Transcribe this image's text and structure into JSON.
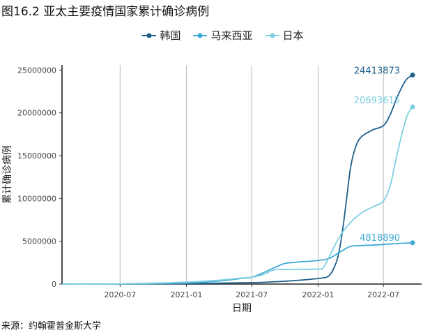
{
  "title": "图16.2 亚太主要疫情国家累计确诊病例",
  "source": "来源：约翰霍普金斯大学",
  "chart_data": {
    "type": "line",
    "title": "图16.2 亚太主要疫情国家累计确诊病例",
    "xlabel": "日期",
    "ylabel": "累计确诊病例",
    "x_ticks": [
      "2020-07",
      "2021-01",
      "2021-07",
      "2022-01",
      "2022-07"
    ],
    "y_ticks": [
      "0",
      "5000000",
      "10000000",
      "15000000",
      "20000000",
      "25000000"
    ],
    "xlim": [
      "2020-01-22",
      "2022-10-15"
    ],
    "ylim": [
      0,
      25600000
    ],
    "grid": "vertical",
    "legend_position": "top",
    "series": [
      {
        "name": "韩国",
        "color": "#1f5f8b",
        "end_label": "24413873",
        "points": [
          [
            "2020-01-22",
            0
          ],
          [
            "2020-07-01",
            13000
          ],
          [
            "2021-01-01",
            62000
          ],
          [
            "2021-07-01",
            160000
          ],
          [
            "2021-10-01",
            330000
          ],
          [
            "2022-01-01",
            650000
          ],
          [
            "2022-02-01",
            1000000
          ],
          [
            "2022-02-20",
            2500000
          ],
          [
            "2022-03-01",
            4000000
          ],
          [
            "2022-03-10",
            6300000
          ],
          [
            "2022-03-20",
            9600000
          ],
          [
            "2022-04-01",
            13600000
          ],
          [
            "2022-04-15",
            16000000
          ],
          [
            "2022-05-01",
            17200000
          ],
          [
            "2022-06-01",
            18000000
          ],
          [
            "2022-07-01",
            18500000
          ],
          [
            "2022-07-20",
            19800000
          ],
          [
            "2022-08-10",
            22000000
          ],
          [
            "2022-09-01",
            23800000
          ],
          [
            "2022-09-20",
            24413873
          ]
        ]
      },
      {
        "name": "马来西亚",
        "color": "#3fa9d6",
        "end_label": "4818890",
        "points": [
          [
            "2020-01-22",
            0
          ],
          [
            "2020-07-01",
            8600
          ],
          [
            "2021-01-01",
            120000
          ],
          [
            "2021-04-01",
            360000
          ],
          [
            "2021-06-01",
            650000
          ],
          [
            "2021-07-01",
            800000
          ],
          [
            "2021-08-01",
            1300000
          ],
          [
            "2021-09-01",
            1900000
          ],
          [
            "2021-10-01",
            2400000
          ],
          [
            "2021-11-01",
            2550000
          ],
          [
            "2022-01-01",
            2750000
          ],
          [
            "2022-02-01",
            3000000
          ],
          [
            "2022-03-01",
            3700000
          ],
          [
            "2022-04-01",
            4400000
          ],
          [
            "2022-05-01",
            4500000
          ],
          [
            "2022-06-01",
            4550000
          ],
          [
            "2022-07-01",
            4620000
          ],
          [
            "2022-08-01",
            4720000
          ],
          [
            "2022-09-20",
            4818890
          ]
        ]
      },
      {
        "name": "日本",
        "color": "#7dcfe0",
        "end_label": "20693615",
        "points": [
          [
            "2020-01-22",
            0
          ],
          [
            "2020-07-01",
            19000
          ],
          [
            "2021-01-01",
            230000
          ],
          [
            "2021-04-01",
            450000
          ],
          [
            "2021-06-01",
            700000
          ],
          [
            "2021-07-01",
            800000
          ],
          [
            "2021-08-01",
            1100000
          ],
          [
            "2021-09-01",
            1650000
          ],
          [
            "2021-10-01",
            1710000
          ],
          [
            "2022-01-01",
            1750000
          ],
          [
            "2022-01-15",
            1900000
          ],
          [
            "2022-02-01",
            3200000
          ],
          [
            "2022-03-01",
            5500000
          ],
          [
            "2022-04-01",
            7200000
          ],
          [
            "2022-05-01",
            8300000
          ],
          [
            "2022-06-01",
            9000000
          ],
          [
            "2022-07-01",
            9700000
          ],
          [
            "2022-07-20",
            11500000
          ],
          [
            "2022-08-01",
            13800000
          ],
          [
            "2022-08-20",
            17300000
          ],
          [
            "2022-09-05",
            19700000
          ],
          [
            "2022-09-20",
            20693615
          ]
        ]
      }
    ]
  }
}
